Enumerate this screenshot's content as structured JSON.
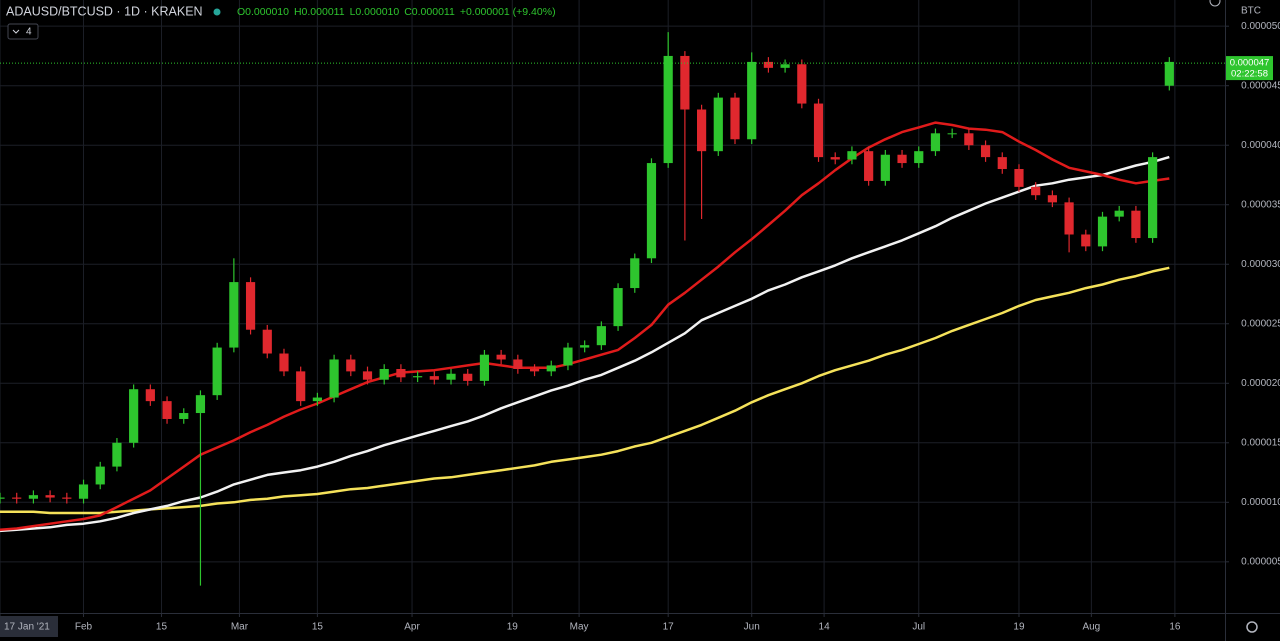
{
  "chart_data": {
    "type": "candlestick",
    "title": "ADAUSD/BTCUSD · 1D · KRAKEN",
    "ohlc_readout": [
      "O0.000010",
      "H0.000011",
      "L0.000010",
      "C0.000011",
      "+0.000001 (+9.40%)"
    ],
    "indicator_count": 4,
    "currency": "BTC",
    "last_price": {
      "value": 4.69e-05,
      "label": "0.000047"
    },
    "countdown": "02:22:58",
    "grid": true,
    "up_color": "#2ec52e",
    "down_color": "#e0282e",
    "xlim": [
      "2021-01-17",
      "2021-08-25"
    ],
    "ylim": [
      7e-07,
      5.22e-05
    ],
    "xticks": [
      {
        "value": "2021-01-17",
        "label": "17 Jan '21"
      },
      {
        "value": "2021-02-01",
        "label": "Feb"
      },
      {
        "value": "2021-02-15",
        "label": "15"
      },
      {
        "value": "2021-03-01",
        "label": "Mar"
      },
      {
        "value": "2021-03-15",
        "label": "15"
      },
      {
        "value": "2021-04-01",
        "label": "Apr"
      },
      {
        "value": "2021-04-19",
        "label": "19"
      },
      {
        "value": "2021-05-01",
        "label": "May"
      },
      {
        "value": "2021-05-17",
        "label": "17"
      },
      {
        "value": "2021-06-01",
        "label": "Jun"
      },
      {
        "value": "2021-06-14",
        "label": "14"
      },
      {
        "value": "2021-07-01",
        "label": "Jul"
      },
      {
        "value": "2021-07-19",
        "label": "19"
      },
      {
        "value": "2021-08-01",
        "label": "Aug"
      },
      {
        "value": "2021-08-16",
        "label": "16"
      }
    ],
    "yticks": [
      {
        "value": 5e-06,
        "label": "0.000005"
      },
      {
        "value": 1e-05,
        "label": "0.000010"
      },
      {
        "value": 1.5e-05,
        "label": "0.000015"
      },
      {
        "value": 2e-05,
        "label": "0.000020"
      },
      {
        "value": 2.5e-05,
        "label": "0.000025"
      },
      {
        "value": 3e-05,
        "label": "0.000030"
      },
      {
        "value": 3.5e-05,
        "label": "0.000035"
      },
      {
        "value": 4e-05,
        "label": "0.000040"
      },
      {
        "value": 4.5e-05,
        "label": "0.000045"
      },
      {
        "value": 5e-05,
        "label": "0.000050"
      }
    ],
    "x": [
      "2021-01-17",
      "2021-01-20",
      "2021-01-23",
      "2021-01-26",
      "2021-01-29",
      "2021-02-01",
      "2021-02-04",
      "2021-02-07",
      "2021-02-10",
      "2021-02-13",
      "2021-02-16",
      "2021-02-19",
      "2021-02-22",
      "2021-02-25",
      "2021-02-28",
      "2021-03-03",
      "2021-03-06",
      "2021-03-09",
      "2021-03-12",
      "2021-03-15",
      "2021-03-18",
      "2021-03-21",
      "2021-03-24",
      "2021-03-27",
      "2021-03-30",
      "2021-04-02",
      "2021-04-05",
      "2021-04-08",
      "2021-04-11",
      "2021-04-14",
      "2021-04-17",
      "2021-04-20",
      "2021-04-23",
      "2021-04-26",
      "2021-04-29",
      "2021-05-02",
      "2021-05-05",
      "2021-05-08",
      "2021-05-11",
      "2021-05-14",
      "2021-05-17",
      "2021-05-20",
      "2021-05-23",
      "2021-05-26",
      "2021-05-29",
      "2021-06-01",
      "2021-06-04",
      "2021-06-07",
      "2021-06-10",
      "2021-06-13",
      "2021-06-16",
      "2021-06-19",
      "2021-06-22",
      "2021-06-25",
      "2021-06-28",
      "2021-07-01",
      "2021-07-04",
      "2021-07-07",
      "2021-07-10",
      "2021-07-13",
      "2021-07-16",
      "2021-07-19",
      "2021-07-22",
      "2021-07-25",
      "2021-07-28",
      "2021-07-31",
      "2021-08-03",
      "2021-08-06",
      "2021-08-09",
      "2021-08-12",
      "2021-08-15"
    ],
    "open": [
      1.03e-05,
      1.04e-05,
      1.03e-05,
      1.06e-05,
      1.04e-05,
      1.03e-05,
      1.15e-05,
      1.3e-05,
      1.5e-05,
      1.95e-05,
      1.85e-05,
      1.7e-05,
      1.75e-05,
      1.9e-05,
      2.3e-05,
      2.85e-05,
      2.45e-05,
      2.25e-05,
      2.1e-05,
      1.85e-05,
      1.88e-05,
      2.2e-05,
      2.1e-05,
      2.03e-05,
      2.12e-05,
      2.05e-05,
      2.06e-05,
      2.03e-05,
      2.08e-05,
      2.02e-05,
      2.24e-05,
      2.2e-05,
      2.12e-05,
      2.1e-05,
      2.15e-05,
      2.3e-05,
      2.32e-05,
      2.48e-05,
      2.8e-05,
      3.05e-05,
      3.85e-05,
      4.75e-05,
      4.3e-05,
      3.95e-05,
      4.4e-05,
      4.05e-05,
      4.7e-05,
      4.65e-05,
      4.68e-05,
      4.35e-05,
      3.9e-05,
      3.88e-05,
      3.95e-05,
      3.7e-05,
      3.92e-05,
      3.85e-05,
      3.95e-05,
      4.1e-05,
      4.1e-05,
      4e-05,
      3.9e-05,
      3.8e-05,
      3.65e-05,
      3.58e-05,
      3.52e-05,
      3.25e-05,
      3.15e-05,
      3.4e-05,
      3.45e-05,
      3.22e-05,
      4.5e-05
    ],
    "high": [
      1.08e-05,
      1.08e-05,
      1.1e-05,
      1.1e-05,
      1.08e-05,
      1.19e-05,
      1.34e-05,
      1.54e-05,
      1.99e-05,
      1.99e-05,
      1.89e-05,
      1.79e-05,
      1.94e-05,
      2.34e-05,
      3.05e-05,
      2.89e-05,
      2.49e-05,
      2.29e-05,
      2.14e-05,
      1.92e-05,
      2.24e-05,
      2.24e-05,
      2.14e-05,
      2.16e-05,
      2.16e-05,
      2.1e-05,
      2.1e-05,
      2.12e-05,
      2.12e-05,
      2.28e-05,
      2.28e-05,
      2.24e-05,
      2.16e-05,
      2.19e-05,
      2.34e-05,
      2.36e-05,
      2.52e-05,
      2.84e-05,
      3.09e-05,
      3.89e-05,
      4.95e-05,
      4.79e-05,
      4.34e-05,
      4.44e-05,
      4.44e-05,
      4.78e-05,
      4.74e-05,
      4.72e-05,
      4.72e-05,
      4.39e-05,
      3.94e-05,
      3.99e-05,
      3.99e-05,
      3.96e-05,
      3.96e-05,
      3.99e-05,
      4.14e-05,
      4.14e-05,
      4.14e-05,
      4.04e-05,
      3.94e-05,
      3.84e-05,
      3.69e-05,
      3.62e-05,
      3.56e-05,
      3.29e-05,
      3.44e-05,
      3.49e-05,
      3.49e-05,
      3.94e-05,
      4.74e-05
    ],
    "low": [
      9.9e-06,
      9.9e-06,
      9.9e-06,
      1e-05,
      9.9e-06,
      9.9e-06,
      1.11e-05,
      1.26e-05,
      1.46e-05,
      1.81e-05,
      1.66e-05,
      1.66e-05,
      3e-06,
      1.86e-05,
      2.26e-05,
      2.41e-05,
      2.21e-05,
      2.06e-05,
      1.81e-05,
      1.81e-05,
      1.84e-05,
      2.06e-05,
      1.99e-05,
      1.99e-05,
      2.01e-05,
      2.01e-05,
      1.99e-05,
      1.99e-05,
      1.98e-05,
      1.98e-05,
      2.16e-05,
      2.08e-05,
      2.06e-05,
      2.06e-05,
      2.11e-05,
      2.26e-05,
      2.28e-05,
      2.44e-05,
      2.76e-05,
      3.01e-05,
      3.81e-05,
      3.2e-05,
      3.38e-05,
      3.91e-05,
      4.01e-05,
      4.01e-05,
      4.61e-05,
      4.61e-05,
      4.31e-05,
      3.86e-05,
      3.84e-05,
      3.84e-05,
      3.66e-05,
      3.66e-05,
      3.81e-05,
      3.81e-05,
      3.91e-05,
      4.06e-05,
      3.96e-05,
      3.86e-05,
      3.76e-05,
      3.61e-05,
      3.54e-05,
      3.48e-05,
      3.1e-05,
      3.11e-05,
      3.11e-05,
      3.36e-05,
      3.18e-05,
      3.18e-05,
      4.46e-05
    ],
    "close": [
      1.04e-05,
      1.03e-05,
      1.06e-05,
      1.04e-05,
      1.03e-05,
      1.15e-05,
      1.3e-05,
      1.5e-05,
      1.95e-05,
      1.85e-05,
      1.7e-05,
      1.75e-05,
      1.9e-05,
      2.3e-05,
      2.85e-05,
      2.45e-05,
      2.25e-05,
      2.1e-05,
      1.85e-05,
      1.88e-05,
      2.2e-05,
      2.1e-05,
      2.03e-05,
      2.12e-05,
      2.05e-05,
      2.06e-05,
      2.03e-05,
      2.08e-05,
      2.02e-05,
      2.24e-05,
      2.2e-05,
      2.12e-05,
      2.1e-05,
      2.15e-05,
      2.3e-05,
      2.32e-05,
      2.48e-05,
      2.8e-05,
      3.05e-05,
      3.85e-05,
      4.75e-05,
      4.3e-05,
      3.95e-05,
      4.4e-05,
      4.05e-05,
      4.7e-05,
      4.65e-05,
      4.68e-05,
      4.35e-05,
      3.9e-05,
      3.88e-05,
      3.95e-05,
      3.7e-05,
      3.92e-05,
      3.85e-05,
      3.95e-05,
      4.1e-05,
      4.1e-05,
      4e-05,
      3.9e-05,
      3.8e-05,
      3.65e-05,
      3.58e-05,
      3.52e-05,
      3.25e-05,
      3.15e-05,
      3.4e-05,
      3.45e-05,
      3.22e-05,
      3.9e-05,
      4.7e-05
    ],
    "lines": [
      {
        "color": "#f5e25a",
        "values": [
          9.2e-06,
          9.2e-06,
          9.2e-06,
          9.1e-06,
          9.1e-06,
          9.1e-06,
          9.1e-06,
          9.2e-06,
          9.3e-06,
          9.4e-06,
          9.5e-06,
          9.6e-06,
          9.7e-06,
          9.9e-06,
          1e-05,
          1.02e-05,
          1.03e-05,
          1.05e-05,
          1.06e-05,
          1.07e-05,
          1.09e-05,
          1.11e-05,
          1.12e-05,
          1.14e-05,
          1.16e-05,
          1.18e-05,
          1.2e-05,
          1.21e-05,
          1.23e-05,
          1.25e-05,
          1.27e-05,
          1.29e-05,
          1.31e-05,
          1.34e-05,
          1.36e-05,
          1.38e-05,
          1.4e-05,
          1.43e-05,
          1.47e-05,
          1.5e-05,
          1.55e-05,
          1.6e-05,
          1.65e-05,
          1.71e-05,
          1.77e-05,
          1.84e-05,
          1.9e-05,
          1.95e-05,
          2e-05,
          2.06e-05,
          2.11e-05,
          2.15e-05,
          2.19e-05,
          2.24e-05,
          2.28e-05,
          2.33e-05,
          2.38e-05,
          2.44e-05,
          2.49e-05,
          2.54e-05,
          2.59e-05,
          2.65e-05,
          2.7e-05,
          2.73e-05,
          2.76e-05,
          2.8e-05,
          2.83e-05,
          2.87e-05,
          2.9e-05,
          2.94e-05,
          2.97e-05
        ]
      },
      {
        "color": "#f2f2f2",
        "values": [
          7.6e-06,
          7.7e-06,
          7.8e-06,
          7.9e-06,
          8.1e-06,
          8.2e-06,
          8.4e-06,
          8.7e-06,
          9.1e-06,
          9.4e-06,
          9.7e-06,
          1.01e-05,
          1.04e-05,
          1.09e-05,
          1.15e-05,
          1.19e-05,
          1.23e-05,
          1.25e-05,
          1.27e-05,
          1.3e-05,
          1.34e-05,
          1.39e-05,
          1.43e-05,
          1.48e-05,
          1.52e-05,
          1.56e-05,
          1.6e-05,
          1.64e-05,
          1.68e-05,
          1.73e-05,
          1.79e-05,
          1.84e-05,
          1.89e-05,
          1.94e-05,
          1.98e-05,
          2.03e-05,
          2.07e-05,
          2.13e-05,
          2.19e-05,
          2.26e-05,
          2.34e-05,
          2.42e-05,
          2.53e-05,
          2.59e-05,
          2.65e-05,
          2.71e-05,
          2.78e-05,
          2.83e-05,
          2.89e-05,
          2.94e-05,
          2.99e-05,
          3.05e-05,
          3.1e-05,
          3.15e-05,
          3.2e-05,
          3.26e-05,
          3.32e-05,
          3.39e-05,
          3.45e-05,
          3.51e-05,
          3.56e-05,
          3.61e-05,
          3.66e-05,
          3.68e-05,
          3.71e-05,
          3.73e-05,
          3.75e-05,
          3.79e-05,
          3.83e-05,
          3.86e-05,
          3.9e-05
        ]
      },
      {
        "color": "#e01b1b",
        "values": [
          7.7e-06,
          7.8e-06,
          8e-06,
          8.2e-06,
          8.4e-06,
          8.6e-06,
          8.9e-06,
          9.6e-06,
          1.03e-05,
          1.1e-05,
          1.2e-05,
          1.3e-05,
          1.4e-05,
          1.46e-05,
          1.52e-05,
          1.59e-05,
          1.65e-05,
          1.72e-05,
          1.78e-05,
          1.83e-05,
          1.89e-05,
          1.95e-05,
          2.01e-05,
          2.05e-05,
          2.09e-05,
          2.1e-05,
          2.11e-05,
          2.13e-05,
          2.15e-05,
          2.17e-05,
          2.15e-05,
          2.13e-05,
          2.13e-05,
          2.13e-05,
          2.16e-05,
          2.2e-05,
          2.24e-05,
          2.28e-05,
          2.38e-05,
          2.49e-05,
          2.66e-05,
          2.76e-05,
          2.87e-05,
          2.98e-05,
          3.1e-05,
          3.21e-05,
          3.33e-05,
          3.45e-05,
          3.58e-05,
          3.68e-05,
          3.79e-05,
          3.89e-05,
          3.98e-05,
          4.05e-05,
          4.11e-05,
          4.15e-05,
          4.19e-05,
          4.17e-05,
          4.14e-05,
          4.13e-05,
          4.11e-05,
          4.03e-05,
          3.96e-05,
          3.88e-05,
          3.81e-05,
          3.78e-05,
          3.75e-05,
          3.71e-05,
          3.68e-05,
          3.7e-05,
          3.72e-05
        ]
      }
    ]
  }
}
